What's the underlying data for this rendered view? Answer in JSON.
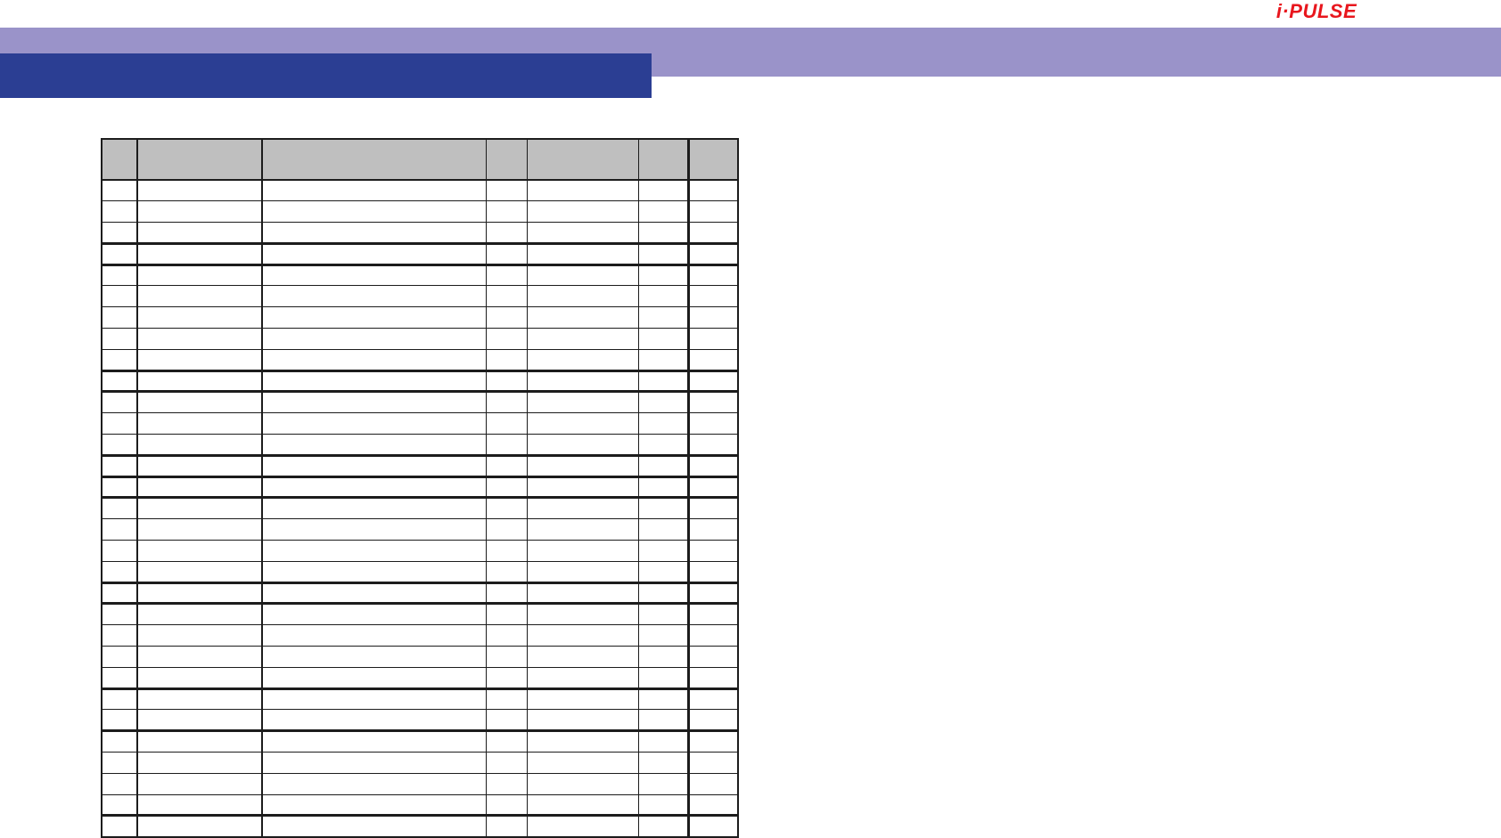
{
  "logo": {
    "text": "i·PULSE",
    "color": "#E8161D"
  },
  "banner": {
    "purple_color": "#9A93C9",
    "blue_color": "#2B3E93",
    "title_text": ""
  },
  "table": {
    "header_fill": "#BFBFBF",
    "border_color": "#1C1C1C",
    "header_cells": [
      "",
      "",
      "",
      "",
      "",
      "",
      ""
    ],
    "column_count": 7,
    "row_count": 31,
    "cells_text": "",
    "thick_bottom_rows": [
      3,
      4,
      9,
      10,
      13,
      14,
      15,
      19,
      20,
      24,
      26,
      30
    ]
  }
}
